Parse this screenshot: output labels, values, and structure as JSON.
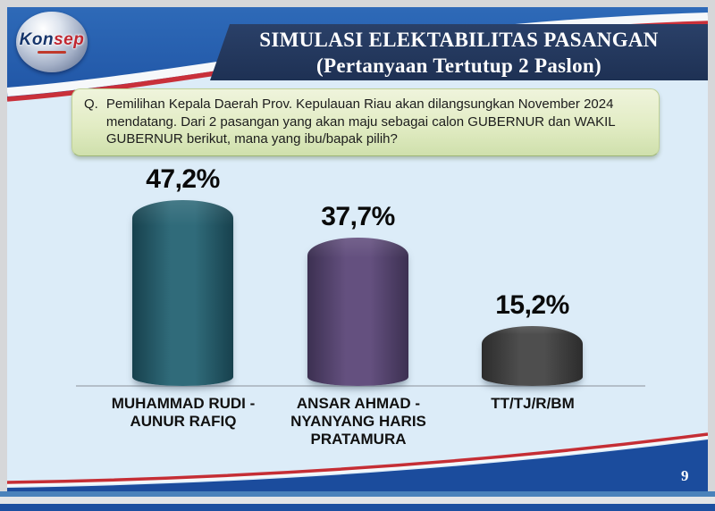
{
  "logo": {
    "text_primary": "Kon",
    "text_secondary": "sep"
  },
  "header": {
    "title_line1": "SIMULASI ELEKTABILITAS PASANGAN",
    "title_line2": "(Pertanyaan Tertutup 2 Paslon)"
  },
  "question": {
    "prefix": "Q.",
    "text": "Pemilihan Kepala Daerah Prov. Kepulauan Riau akan dilangsungkan November 2024 mendatang. Dari 2 pasangan yang akan maju sebagai calon GUBERNUR dan WAKIL GUBERNUR berikut, mana yang ibu/bapak pilih?"
  },
  "chart_data": {
    "type": "bar",
    "title": "SIMULASI ELEKTABILITAS PASANGAN (Pertanyaan Tertutup 2 Paslon)",
    "categories": [
      "MUHAMMAD RUDI -\nAUNUR RAFIQ",
      "ANSAR AHMAD -\nNYANYANG HARIS\nPRATAMURA",
      "TT/TJ/R/BM"
    ],
    "values": [
      47.2,
      37.7,
      15.2
    ],
    "value_labels": [
      "47,2%",
      "37,7%",
      "15,2%"
    ],
    "unit": "%",
    "ylim": [
      0,
      50
    ],
    "grid": false,
    "legend": false,
    "bar_colors": [
      {
        "light": "#306b7a",
        "dark": "#17414d"
      },
      {
        "light": "#64507f",
        "dark": "#3c3051"
      },
      {
        "light": "#4e4e4e",
        "dark": "#2c2c2c"
      }
    ]
  },
  "footer": {
    "page_number": "9"
  },
  "colors": {
    "slide_background": "#dcecf8",
    "header_blue": "#2e6ab8",
    "banner_navy": "#1e3154",
    "stripe_red": "#c9303a",
    "question_green": "#dcebbe",
    "footer_swoosh_blue": "#1b4c9d"
  }
}
